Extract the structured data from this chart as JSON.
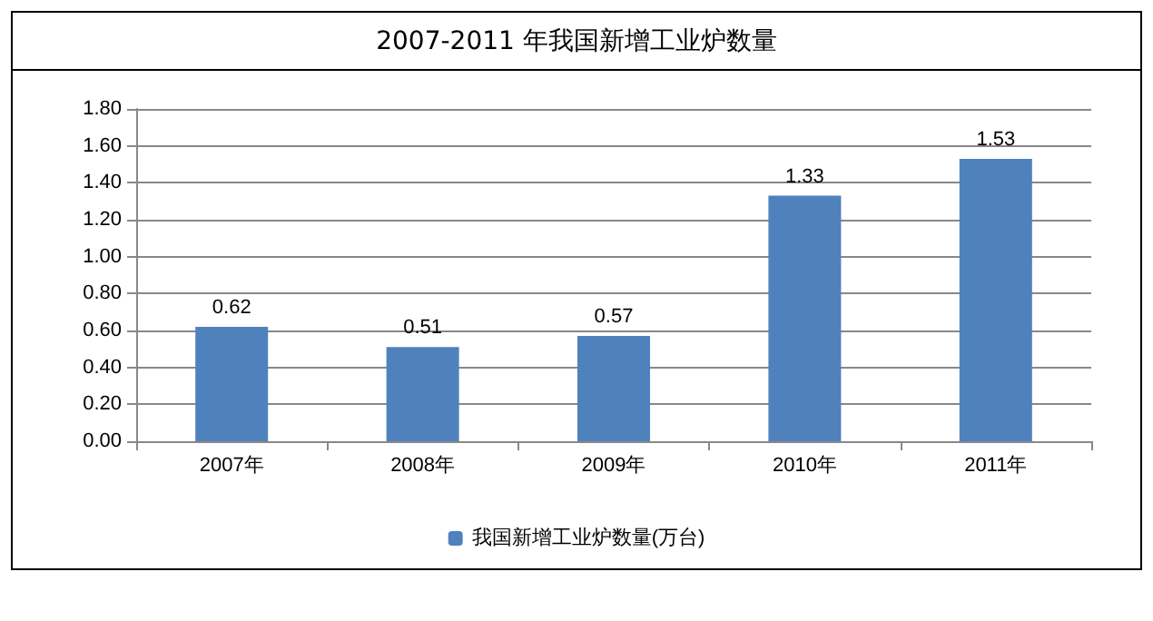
{
  "chart_data": {
    "type": "bar",
    "title": "2007-2011 年我国新增工业炉数量",
    "categories": [
      "2007年",
      "2008年",
      "2009年",
      "2010年",
      "2011年"
    ],
    "series": [
      {
        "name": "我国新增工业炉数量(万台)",
        "color": "#4f81bd",
        "values": [
          0.62,
          0.51,
          0.57,
          1.33,
          1.53
        ]
      }
    ],
    "ylim": [
      0,
      1.8
    ],
    "yticks": [
      "0.00",
      "0.20",
      "0.40",
      "0.60",
      "0.80",
      "1.00",
      "1.20",
      "1.40",
      "1.60",
      "1.80"
    ],
    "grid": "y",
    "legend": "bottom",
    "data_labels": true
  }
}
